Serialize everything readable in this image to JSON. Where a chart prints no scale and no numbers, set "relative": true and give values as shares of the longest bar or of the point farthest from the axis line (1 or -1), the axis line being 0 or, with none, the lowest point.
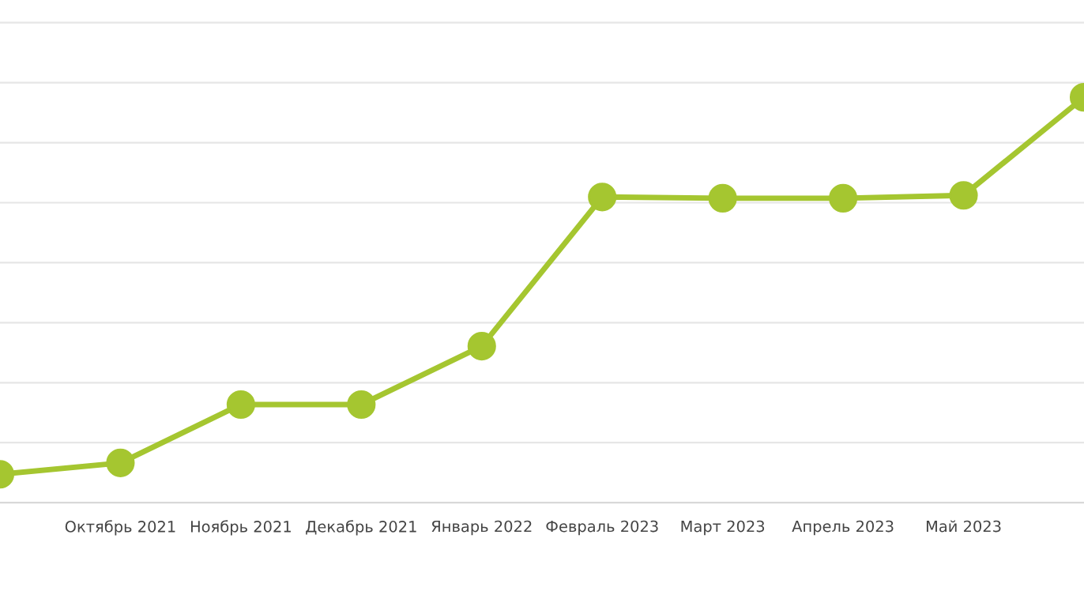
{
  "chart_data": {
    "type": "line",
    "relative": true,
    "categories": [
      null,
      "Октябрь 2021",
      "Ноябрь 2021",
      "Декабрь 2021",
      "Январь 2022",
      "Февраль 2023",
      "Март 2023",
      "Апрель 2023",
      "Май 2023",
      null
    ],
    "series": [
      {
        "color": "#a5c630",
        "values": [
          0.07,
          0.098,
          0.242,
          0.242,
          0.386,
          0.754,
          0.751,
          0.751,
          0.758,
          1
        ]
      }
    ],
    "marker": "circle",
    "line_style": "solid",
    "grid": "y"
  }
}
